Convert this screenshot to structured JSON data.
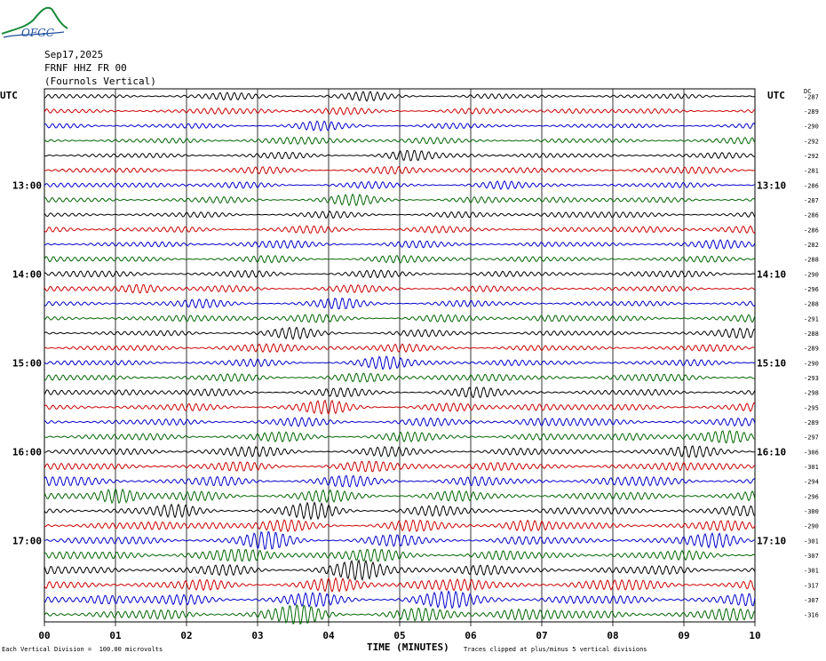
{
  "logo": {
    "text": "OFGC",
    "color": "#1a8a3a"
  },
  "header": {
    "date": "Sep17,2025",
    "station": "FRNF HHZ FR 00",
    "location": "(Fournols Vertical)"
  },
  "left_axis_title": "UTC",
  "right_axis_title": "UTC",
  "dc_label": "DC",
  "footer": {
    "vertical_division": "Each Vertical Division =  100.00 microvolts",
    "x_title": "TIME (MINUTES)",
    "clip_note": "Traces clipped at plus/minus 5 vertical divisions"
  },
  "colors": {
    "trace": [
      "#000000",
      "#cc0000",
      "#0000cc",
      "#006600"
    ],
    "grid": "#000000"
  },
  "chart_data": {
    "type": "line",
    "title": "",
    "xlabel": "TIME (MINUTES)",
    "xlim": [
      0,
      10
    ],
    "x_ticks": [
      "00",
      "01",
      "02",
      "03",
      "04",
      "05",
      "06",
      "07",
      "08",
      "09",
      "10"
    ],
    "left_time_labels": [
      "13:00",
      "14:00",
      "15:00",
      "16:00",
      "17:00"
    ],
    "right_time_labels": [
      "13:10",
      "14:10",
      "15:10",
      "16:10",
      "17:10"
    ],
    "label_row_index": [
      6,
      12,
      18,
      24,
      30
    ],
    "rows": 36,
    "dc_offsets": [
      -287,
      -289,
      -290,
      -292,
      -292,
      -281,
      -286,
      -287,
      -286,
      -286,
      -282,
      -288,
      -290,
      -296,
      -288,
      -291,
      -288,
      -289,
      -290,
      -293,
      -298,
      -295,
      -289,
      -297,
      -306,
      -301,
      -294,
      -296,
      -300,
      -290,
      -301,
      -307,
      -301,
      -317,
      -307,
      -316
    ],
    "amplitudes": [
      0.5,
      0.55,
      0.5,
      0.55,
      0.55,
      0.6,
      0.55,
      0.6,
      0.55,
      0.6,
      0.6,
      0.6,
      0.6,
      0.6,
      0.6,
      0.65,
      0.6,
      0.65,
      0.65,
      0.7,
      0.7,
      0.75,
      0.7,
      0.8,
      0.8,
      0.85,
      0.9,
      0.95,
      0.9,
      0.95,
      0.95,
      1.0,
      1.0,
      1.05,
      1.1,
      1.1
    ]
  }
}
